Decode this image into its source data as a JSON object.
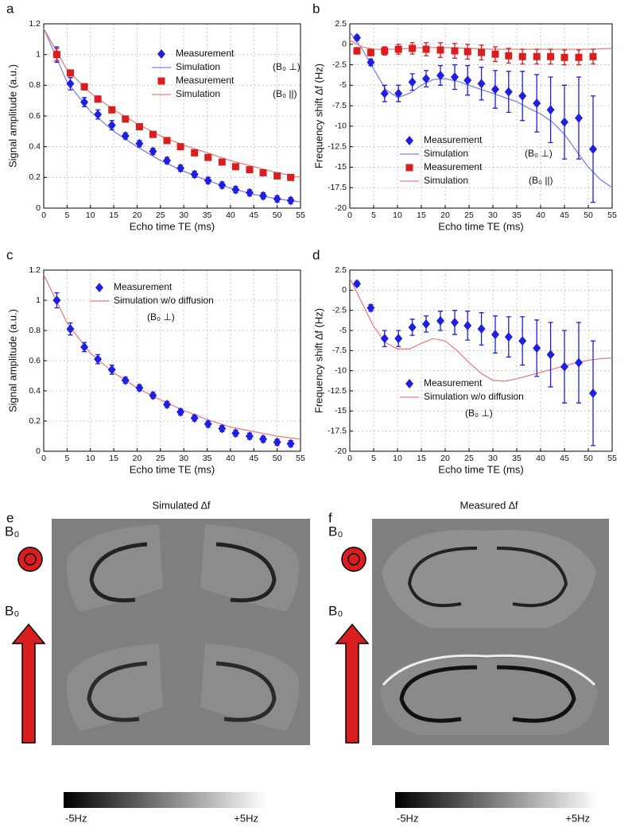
{
  "chart_data": [
    {
      "type": "line",
      "panel_label": "a",
      "x_label": "Echo time TE (ms)",
      "y_label": "Signal amplitude (a.u.)",
      "xlim": [
        0,
        55
      ],
      "ylim": [
        0,
        1.2
      ],
      "xticks": [
        0,
        5,
        10,
        15,
        20,
        25,
        30,
        35,
        40,
        45,
        50,
        55
      ],
      "yticks": [
        0,
        0.2,
        0.4,
        0.6,
        0.8,
        1,
        1.2
      ],
      "grid": true,
      "legend_position": "upper right",
      "annotations": [
        "(B₀ ⊥)",
        "(B₀ ||)"
      ],
      "series": [
        {
          "name": "Measurement",
          "color": "#1f1fe0",
          "marker": "diamond",
          "x": [
            2.8,
            5.7,
            8.7,
            11.6,
            14.6,
            17.5,
            20.5,
            23.4,
            26.4,
            29.3,
            32.3,
            35.2,
            38.2,
            41.1,
            44.1,
            47,
            50,
            52.9
          ],
          "values": [
            1.0,
            0.81,
            0.69,
            0.61,
            0.54,
            0.47,
            0.42,
            0.37,
            0.31,
            0.26,
            0.22,
            0.18,
            0.15,
            0.12,
            0.1,
            0.08,
            0.06,
            0.05
          ],
          "errors": [
            0.05,
            0.04,
            0.03,
            0.03,
            0.03,
            0.02,
            0.02,
            0.02,
            0.02,
            0.02,
            0.02,
            0.02,
            0.02,
            0.02,
            0.02,
            0.02,
            0.02,
            0.02
          ]
        },
        {
          "name": "Simulation",
          "color": "#8080f0",
          "marker": "line",
          "x": [
            0,
            5,
            10,
            15,
            20,
            25,
            30,
            35,
            40,
            45,
            50,
            55
          ],
          "values": [
            1.17,
            0.82,
            0.63,
            0.5,
            0.4,
            0.31,
            0.24,
            0.18,
            0.13,
            0.09,
            0.06,
            0.04
          ]
        },
        {
          "name": "Measurement",
          "color": "#d81e1e",
          "marker": "square",
          "x": [
            2.8,
            5.7,
            8.7,
            11.6,
            14.6,
            17.5,
            20.5,
            23.4,
            26.4,
            29.3,
            32.3,
            35.2,
            38.2,
            41.1,
            44.1,
            47,
            50,
            52.9
          ],
          "values": [
            1.0,
            0.88,
            0.79,
            0.71,
            0.64,
            0.58,
            0.53,
            0.48,
            0.44,
            0.4,
            0.36,
            0.33,
            0.3,
            0.27,
            0.25,
            0.23,
            0.21,
            0.2
          ],
          "errors": [
            0.04,
            0.02,
            0.02,
            0.02,
            0.02,
            0.02,
            0.01,
            0.01,
            0.01,
            0.01,
            0.01,
            0.01,
            0.01,
            0.01,
            0.01,
            0.01,
            0.01,
            0.01
          ]
        },
        {
          "name": "Simulation",
          "color": "#e88080",
          "marker": "line",
          "x": [
            0,
            5,
            10,
            15,
            20,
            25,
            30,
            35,
            40,
            45,
            50,
            55
          ],
          "values": [
            1.17,
            0.9,
            0.75,
            0.64,
            0.55,
            0.47,
            0.41,
            0.36,
            0.31,
            0.27,
            0.23,
            0.2
          ]
        }
      ]
    },
    {
      "type": "line",
      "panel_label": "b",
      "x_label": "Echo time TE (ms)",
      "y_label": "Frequency shift ∆f (Hz)",
      "xlim": [
        0,
        55
      ],
      "ylim": [
        -20,
        2.5
      ],
      "xticks": [
        0,
        5,
        10,
        15,
        20,
        25,
        30,
        35,
        40,
        45,
        50,
        55
      ],
      "yticks": [
        2.5,
        0,
        -2.5,
        -5,
        -7.5,
        -10,
        -12.5,
        -15,
        -17.5,
        -20
      ],
      "grid": true,
      "legend_position": "lower left",
      "annotations": [
        "(B₀ ⊥)",
        "(B₀ ||)"
      ],
      "series": [
        {
          "name": "Measurement",
          "color": "#1f1fe0",
          "marker": "diamond",
          "x": [
            1.5,
            4.4,
            7.3,
            10.2,
            13.1,
            16,
            19,
            22,
            24.7,
            27.6,
            30.5,
            33.3,
            36.2,
            39.2,
            42.1,
            45,
            48,
            51
          ],
          "values": [
            0.8,
            -2.2,
            -6,
            -6,
            -4.6,
            -4.2,
            -3.8,
            -4,
            -4.4,
            -4.8,
            -5.5,
            -5.8,
            -6.3,
            -7.2,
            -8,
            -9.5,
            -9,
            -12.8
          ],
          "errors": [
            0.3,
            0.4,
            1,
            1,
            1,
            1,
            1.2,
            1.5,
            1.8,
            2,
            2.3,
            2.5,
            3,
            3.5,
            4,
            4.5,
            5,
            6.5
          ]
        },
        {
          "name": "Simulation",
          "color": "#8080f0",
          "marker": "line",
          "x": [
            0,
            2.5,
            5,
            7.5,
            10,
            12.5,
            15,
            17.5,
            20,
            22.5,
            25,
            27.5,
            30,
            32.5,
            35,
            37.5,
            40,
            42.5,
            45,
            47.5,
            50,
            52.5,
            55
          ],
          "values": [
            1.5,
            -0.5,
            -3,
            -5.5,
            -6.5,
            -6,
            -5,
            -4.3,
            -4.2,
            -4.5,
            -5,
            -5.5,
            -6,
            -6.5,
            -7,
            -7.8,
            -8.5,
            -9.5,
            -11,
            -13,
            -15,
            -16.5,
            -17.5
          ]
        },
        {
          "name": "Measurement",
          "color": "#d81e1e",
          "marker": "square",
          "x": [
            1.5,
            4.4,
            7.3,
            10.2,
            13.1,
            16,
            19,
            22,
            24.7,
            27.6,
            30.5,
            33.3,
            36.2,
            39.2,
            42.1,
            45,
            48,
            51
          ],
          "values": [
            -0.8,
            -1,
            -0.8,
            -0.6,
            -0.5,
            -0.6,
            -0.7,
            -0.8,
            -0.9,
            -1,
            -1.2,
            -1.4,
            -1.5,
            -1.5,
            -1.5,
            -1.6,
            -1.6,
            -1.5
          ],
          "errors": [
            0.4,
            0.4,
            0.5,
            0.6,
            0.7,
            0.8,
            0.9,
            0.9,
            0.9,
            0.9,
            0.9,
            0.9,
            0.9,
            0.9,
            0.9,
            0.9,
            0.9,
            0.9
          ]
        },
        {
          "name": "Simulation",
          "color": "#e88080",
          "marker": "line",
          "x": [
            0,
            2.5,
            5,
            10,
            15,
            20,
            25,
            30,
            35,
            40,
            45,
            50,
            55
          ],
          "values": [
            0.5,
            -0.3,
            -0.6,
            -0.6,
            -0.4,
            -0.4,
            -0.5,
            -0.6,
            -0.6,
            -0.6,
            -0.6,
            -0.6,
            -0.5
          ]
        }
      ]
    },
    {
      "type": "line",
      "panel_label": "c",
      "x_label": "Echo time TE (ms)",
      "y_label": "Signal amplitude (a.u.)",
      "xlim": [
        0,
        55
      ],
      "ylim": [
        0,
        1.2
      ],
      "xticks": [
        0,
        5,
        10,
        15,
        20,
        25,
        30,
        35,
        40,
        45,
        50,
        55
      ],
      "yticks": [
        0,
        0.2,
        0.4,
        0.6,
        0.8,
        1,
        1.2
      ],
      "grid": true,
      "legend_position": "upper center",
      "annotations": [
        "(B₀ ⊥)"
      ],
      "series": [
        {
          "name": "Measurement",
          "color": "#1f1fe0",
          "marker": "diamond",
          "x": [
            2.8,
            5.7,
            8.7,
            11.6,
            14.6,
            17.5,
            20.5,
            23.4,
            26.4,
            29.3,
            32.3,
            35.2,
            38.2,
            41.1,
            44.1,
            47,
            50,
            52.9
          ],
          "values": [
            1.0,
            0.81,
            0.69,
            0.61,
            0.54,
            0.47,
            0.42,
            0.37,
            0.31,
            0.26,
            0.22,
            0.18,
            0.15,
            0.12,
            0.1,
            0.08,
            0.06,
            0.05
          ],
          "errors": [
            0.05,
            0.04,
            0.03,
            0.03,
            0.03,
            0.02,
            0.02,
            0.02,
            0.02,
            0.02,
            0.02,
            0.02,
            0.02,
            0.02,
            0.02,
            0.02,
            0.02,
            0.02
          ]
        },
        {
          "name": "Simulation w/o diffusion",
          "color": "#e88080",
          "marker": "line",
          "x": [
            0,
            5,
            10,
            15,
            20,
            25,
            30,
            35,
            40,
            45,
            50,
            55
          ],
          "values": [
            1.17,
            0.85,
            0.65,
            0.52,
            0.42,
            0.34,
            0.27,
            0.21,
            0.16,
            0.13,
            0.1,
            0.08
          ]
        }
      ]
    },
    {
      "type": "line",
      "panel_label": "d",
      "x_label": "Echo time TE (ms)",
      "y_label": "Frequency shift ∆f (Hz)",
      "xlim": [
        0,
        55
      ],
      "ylim": [
        -20,
        2.5
      ],
      "xticks": [
        0,
        5,
        10,
        15,
        20,
        25,
        30,
        35,
        40,
        45,
        50,
        55
      ],
      "yticks": [
        2.5,
        0,
        -2.5,
        -5,
        -7.5,
        -10,
        -12.5,
        -15,
        -17.5,
        -20
      ],
      "grid": true,
      "legend_position": "lower left",
      "annotations": [
        "(B₀ ⊥)"
      ],
      "series": [
        {
          "name": "Measurement",
          "color": "#1f1fe0",
          "marker": "diamond",
          "x": [
            1.5,
            4.4,
            7.3,
            10.2,
            13.1,
            16,
            19,
            22,
            24.7,
            27.6,
            30.5,
            33.3,
            36.2,
            39.2,
            42.1,
            45,
            48,
            51
          ],
          "values": [
            0.8,
            -2.2,
            -6,
            -6,
            -4.6,
            -4.2,
            -3.8,
            -4,
            -4.4,
            -4.8,
            -5.5,
            -5.8,
            -6.3,
            -7.2,
            -8,
            -9.5,
            -9,
            -12.8
          ],
          "errors": [
            0.3,
            0.4,
            1,
            1,
            1,
            1,
            1.2,
            1.5,
            1.8,
            2,
            2.3,
            2.5,
            3,
            3.5,
            4,
            4.5,
            5,
            6.5
          ]
        },
        {
          "name": "Simulation w/o diffusion",
          "color": "#e88080",
          "marker": "line",
          "x": [
            0,
            2.5,
            5,
            7.5,
            10,
            12.5,
            15,
            17.5,
            20,
            22.5,
            25,
            27.5,
            30,
            32.5,
            35,
            37.5,
            40,
            42.5,
            45,
            47.5,
            50,
            52.5,
            55
          ],
          "values": [
            1.5,
            -1.5,
            -4.5,
            -6.5,
            -7.3,
            -7.3,
            -6.6,
            -6,
            -6.3,
            -7.5,
            -9,
            -10.3,
            -11.2,
            -11.3,
            -11,
            -10.6,
            -10.2,
            -9.8,
            -9.4,
            -9,
            -8.7,
            -8.5,
            -8.4
          ]
        }
      ]
    }
  ],
  "figure": {
    "panels": [
      {
        "label": "e",
        "title": "Simulated ∆f"
      },
      {
        "label": "f",
        "title": "Measured ∆f"
      }
    ],
    "field_label": "B₀",
    "colorbar": {
      "min_label": "-5Hz",
      "max_label": "+5Hz"
    }
  }
}
